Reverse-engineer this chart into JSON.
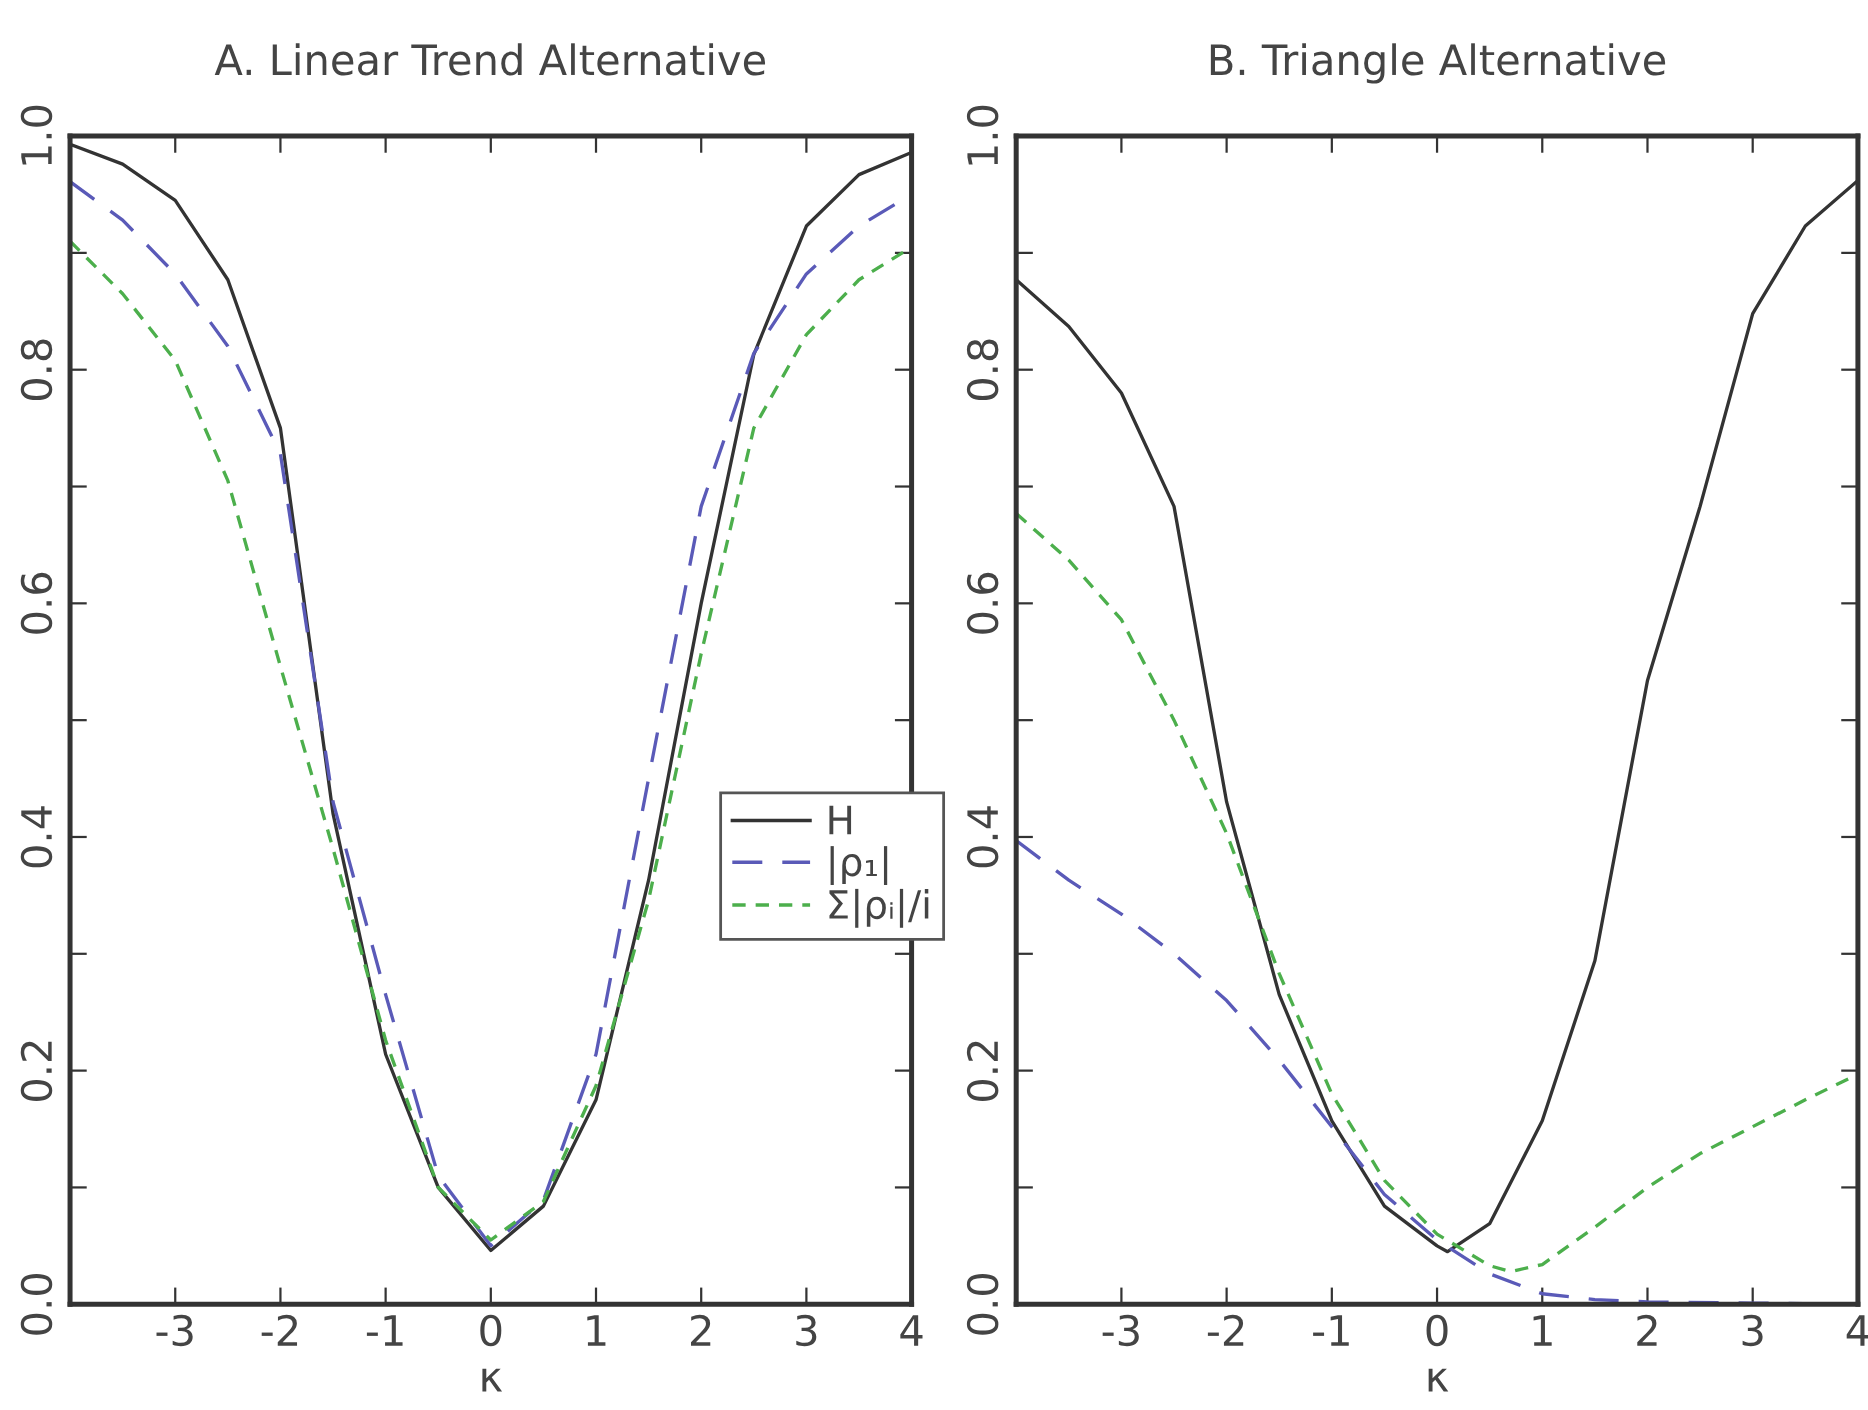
{
  "chart_data": [
    {
      "type": "line",
      "title": "A. Linear Trend Alternative",
      "xlabel": "κ",
      "legend": "right",
      "grid": false,
      "xlim": [
        -4,
        4
      ],
      "ylim": [
        0,
        1
      ],
      "xticks": [
        {
          "value": -4,
          "label": null
        },
        -3,
        -2,
        -1,
        0,
        1,
        2,
        3,
        4
      ],
      "yticks": [
        {
          "value": 0,
          "label": "0.0"
        },
        {
          "value": 0.1,
          "label": null
        },
        {
          "value": 0.2,
          "label": "0.2"
        },
        {
          "value": 0.3,
          "label": null
        },
        {
          "value": 0.4,
          "label": "0.4"
        },
        {
          "value": 0.5,
          "label": null
        },
        {
          "value": 0.6,
          "label": "0.6"
        },
        {
          "value": 0.7,
          "label": null
        },
        {
          "value": 0.8,
          "label": "0.8"
        },
        {
          "value": 0.9,
          "label": null
        },
        {
          "value": 1,
          "label": "1.0"
        }
      ],
      "x": [
        -4,
        -3.5,
        -3,
        -2.5,
        -2,
        -1.5,
        -1,
        -0.5,
        0,
        0.5,
        1,
        1.5,
        2,
        2.5,
        3,
        3.5,
        4
      ],
      "series": [
        {
          "name": "H",
          "color": "#333333",
          "line_style": "solid",
          "values": [
            0.993,
            0.976,
            0.945,
            0.877,
            0.75,
            0.42,
            0.214,
            0.1,
            0.046,
            0.084,
            0.175,
            0.363,
            0.6,
            0.813,
            0.923,
            0.967,
            0.986
          ]
        },
        {
          "name": "|ρ₁|",
          "color": "#5a5ab8",
          "line_style": "dashed",
          "values": [
            0.961,
            0.928,
            0.882,
            0.82,
            0.728,
            0.43,
            0.265,
            0.11,
            0.05,
            0.089,
            0.214,
            0.45,
            0.683,
            0.814,
            0.882,
            0.923,
            0.95
          ]
        },
        {
          "name": "Σ|ρᵢ|/i",
          "color": "#4caf4c",
          "line_style": "dashed",
          "values": [
            0.91,
            0.865,
            0.808,
            0.705,
            0.546,
            0.39,
            0.226,
            0.1,
            0.055,
            0.088,
            0.187,
            0.346,
            0.557,
            0.75,
            0.83,
            0.877,
            0.905
          ]
        }
      ]
    },
    {
      "type": "line",
      "title": "B. Triangle Alternative",
      "xlabel": "κ",
      "grid": false,
      "xlim": [
        -4,
        4
      ],
      "ylim": [
        0,
        1
      ],
      "xticks": [
        {
          "value": -4,
          "label": null
        },
        -3,
        -2,
        -1,
        0,
        1,
        2,
        3,
        4
      ],
      "yticks": [
        {
          "value": 0,
          "label": "0.0"
        },
        {
          "value": 0.1,
          "label": null
        },
        {
          "value": 0.2,
          "label": "0.2"
        },
        {
          "value": 0.3,
          "label": null
        },
        {
          "value": 0.4,
          "label": "0.4"
        },
        {
          "value": 0.5,
          "label": null
        },
        {
          "value": 0.6,
          "label": "0.6"
        },
        {
          "value": 0.7,
          "label": null
        },
        {
          "value": 0.8,
          "label": "0.8"
        },
        {
          "value": 0.9,
          "label": null
        },
        {
          "value": 1,
          "label": "1.0"
        }
      ],
      "series": [
        {
          "color": "#333333",
          "line_style": "solid",
          "x": [
            -4,
            -3.5,
            -3,
            -2.5,
            -2,
            -1.5,
            -1,
            -0.5,
            0,
            0.1,
            0.5,
            1,
            1.5,
            2,
            2.5,
            3,
            3.5,
            4
          ],
          "values": [
            0.877,
            0.837,
            0.78,
            0.683,
            0.43,
            0.265,
            0.157,
            0.084,
            0.05,
            0.045,
            0.069,
            0.157,
            0.294,
            0.534,
            0.683,
            0.848,
            0.923,
            0.962
          ]
        },
        {
          "color": "#5a5ab8",
          "line_style": "dashed",
          "x": [
            -4,
            -3.5,
            -3,
            -2.5,
            -2,
            -1.5,
            -1,
            -0.5,
            0,
            0.5,
            1,
            1.5,
            2,
            3,
            4
          ],
          "values": [
            0.397,
            0.363,
            0.334,
            0.3,
            0.26,
            0.209,
            0.152,
            0.094,
            0.055,
            0.026,
            0.009,
            0.004,
            0.002,
            0.001,
            0
          ]
        },
        {
          "color": "#4caf4c",
          "line_style": "dashed",
          "x": [
            -4,
            -3.5,
            -3,
            -2.5,
            -2,
            -1.5,
            -1,
            -0.5,
            0,
            0.5,
            0.7,
            1,
            1.5,
            2,
            2.5,
            3,
            3.5,
            4
          ],
          "values": [
            0.677,
            0.637,
            0.586,
            0.5,
            0.403,
            0.283,
            0.18,
            0.106,
            0.06,
            0.033,
            0.028,
            0.034,
            0.066,
            0.1,
            0.129,
            0.152,
            0.175,
            0.197
          ]
        }
      ]
    }
  ]
}
